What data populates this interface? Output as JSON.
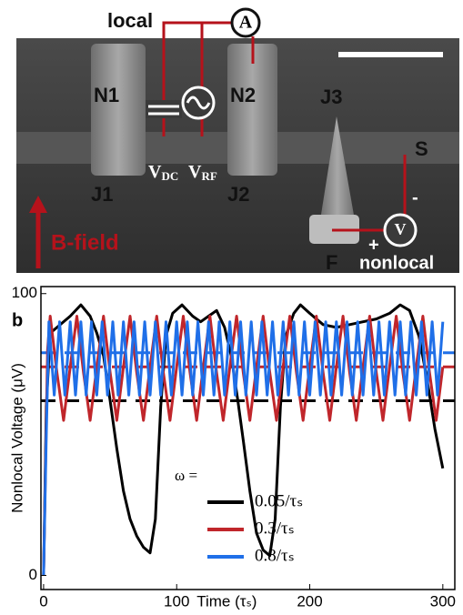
{
  "figure": {
    "local": "local",
    "ammeter": "A",
    "n1": "N1",
    "n2": "N2",
    "j3": "J3",
    "s": "S",
    "j1": "J1",
    "j2": "J2",
    "vdc": {
      "base": "V",
      "sub": "DC"
    },
    "vrf": {
      "base": "V",
      "sub": "RF"
    },
    "minus": "-",
    "plus": "+",
    "voltmeter": "V",
    "f": "F",
    "b_field": "B-field",
    "nonlocal": "nonlocal"
  },
  "chart_data": {
    "type": "line",
    "panel_label": "b",
    "y_label": "Nonlocal Voltage (μV)",
    "x_label": "Time (τₛ)",
    "xlim": [
      -2,
      309
    ],
    "xticks": [
      0,
      100,
      200,
      300
    ],
    "ylim": [
      -5,
      102.5
    ],
    "yticks": [
      0,
      100
    ],
    "legend_title": "ω =",
    "series": [
      {
        "name": "0.05/τₛ",
        "color": "#000000",
        "mean": 62,
        "x": [
          0,
          2,
          5,
          10,
          20,
          28,
          35,
          40,
          45,
          50,
          55,
          60,
          65,
          70,
          75,
          80,
          84,
          88,
          92,
          97,
          104,
          112,
          118,
          124,
          130,
          136,
          141,
          146,
          150,
          155,
          160,
          165,
          170,
          174,
          178,
          182,
          188,
          193,
          200,
          210,
          220,
          230,
          240,
          250,
          260,
          268,
          275,
          282,
          288,
          294,
          300
        ],
        "values": [
          0,
          60,
          86,
          88,
          92,
          96,
          92,
          86,
          78,
          62,
          45,
          30,
          20,
          14,
          10,
          8,
          20,
          60,
          85,
          93,
          96,
          92,
          90,
          92,
          94,
          88,
          78,
          62,
          48,
          30,
          15,
          9,
          7,
          20,
          60,
          85,
          93,
          96,
          93,
          89,
          88,
          89,
          90,
          91,
          93,
          96,
          94,
          85,
          70,
          52,
          38
        ]
      },
      {
        "name": "0.3/τₛ",
        "color": "#c0262b",
        "mean": 74,
        "x": [
          0,
          3,
          5,
          10,
          15,
          20,
          25,
          30,
          35,
          40,
          45,
          50,
          55,
          60,
          65,
          70,
          75,
          80,
          85,
          90,
          95,
          100,
          105,
          110,
          115,
          120,
          125,
          130,
          135,
          140,
          145,
          150,
          155,
          160,
          165,
          170,
          175,
          180,
          185,
          190,
          195,
          200,
          205,
          210,
          215,
          220,
          225,
          230,
          235,
          240,
          245,
          250,
          255,
          260,
          265,
          270,
          275,
          280,
          285,
          290,
          295,
          300
        ],
        "values": [
          0,
          80,
          92,
          72,
          55,
          74,
          92,
          72,
          55,
          74,
          92,
          72,
          55,
          74,
          92,
          72,
          55,
          74,
          92,
          72,
          55,
          74,
          92,
          72,
          55,
          74,
          92,
          72,
          55,
          74,
          92,
          72,
          55,
          74,
          92,
          72,
          55,
          74,
          92,
          72,
          55,
          74,
          92,
          72,
          55,
          74,
          92,
          72,
          55,
          74,
          92,
          72,
          55,
          74,
          92,
          72,
          55,
          74,
          92,
          72,
          55,
          74
        ]
      },
      {
        "name": "0.8/τₛ",
        "color": "#1f6fe8",
        "mean": 79,
        "x": [
          0,
          2,
          4,
          8,
          12,
          16,
          20,
          24,
          28,
          32,
          36,
          40,
          44,
          48,
          52,
          56,
          60,
          64,
          68,
          72,
          76,
          80,
          84,
          88,
          92,
          96,
          100,
          104,
          108,
          112,
          116,
          120,
          124,
          128,
          132,
          136,
          140,
          144,
          148,
          152,
          156,
          160,
          164,
          168,
          172,
          176,
          180,
          184,
          188,
          192,
          196,
          200,
          204,
          208,
          212,
          216,
          220,
          224,
          228,
          232,
          236,
          240,
          244,
          248,
          252,
          256,
          260,
          264,
          268,
          272,
          276,
          280,
          284,
          288,
          292,
          296,
          300
        ],
        "values": [
          0,
          50,
          90,
          64,
          90,
          64,
          90,
          64,
          90,
          64,
          90,
          64,
          90,
          64,
          90,
          64,
          90,
          64,
          90,
          64,
          90,
          64,
          90,
          64,
          90,
          64,
          90,
          64,
          90,
          64,
          90,
          64,
          90,
          64,
          90,
          64,
          90,
          64,
          90,
          64,
          90,
          64,
          90,
          64,
          90,
          64,
          90,
          64,
          90,
          64,
          90,
          64,
          90,
          64,
          90,
          64,
          90,
          64,
          90,
          64,
          90,
          64,
          90,
          64,
          90,
          64,
          90,
          64,
          90,
          64,
          90,
          64,
          90,
          64,
          90,
          64,
          90
        ]
      }
    ]
  }
}
